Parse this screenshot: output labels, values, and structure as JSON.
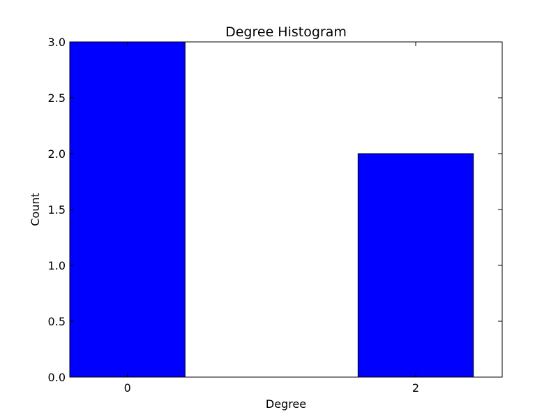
{
  "chart_data": {
    "type": "bar",
    "title": "Degree Histogram",
    "xlabel": "Degree",
    "ylabel": "Count",
    "categories": [
      "0",
      "2"
    ],
    "x": [
      0,
      2
    ],
    "values": [
      3,
      2
    ],
    "xlim": [
      -0.4,
      2.6
    ],
    "ylim": [
      0,
      3
    ],
    "bar_width": 0.8,
    "x_ticks": [
      "0",
      "2"
    ],
    "y_ticks": [
      "0.0",
      "0.5",
      "1.0",
      "1.5",
      "2.0",
      "2.5",
      "3.0"
    ],
    "y_tick_values": [
      0,
      0.5,
      1,
      1.5,
      2,
      2.5,
      3
    ],
    "grid": false,
    "bar_color": "#0000ff",
    "edge_color": "#000000"
  }
}
